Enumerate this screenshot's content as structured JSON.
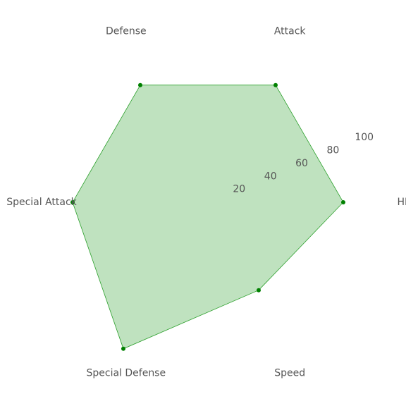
{
  "chart_data": {
    "type": "radar",
    "title": "",
    "axes": [
      "HP",
      "Attack",
      "Defense",
      "Special Attack",
      "Special Defense",
      "Speed"
    ],
    "values": [
      80,
      80,
      80,
      80,
      100,
      60
    ],
    "rlim": [
      0,
      100
    ],
    "rticks": [
      20,
      40,
      60,
      80,
      100
    ],
    "grid": false,
    "legend": "none",
    "fill_color": "#2ca02c",
    "fill_opacity": 0.3,
    "line_color": "#2ca02c",
    "marker_color": "#008000"
  }
}
